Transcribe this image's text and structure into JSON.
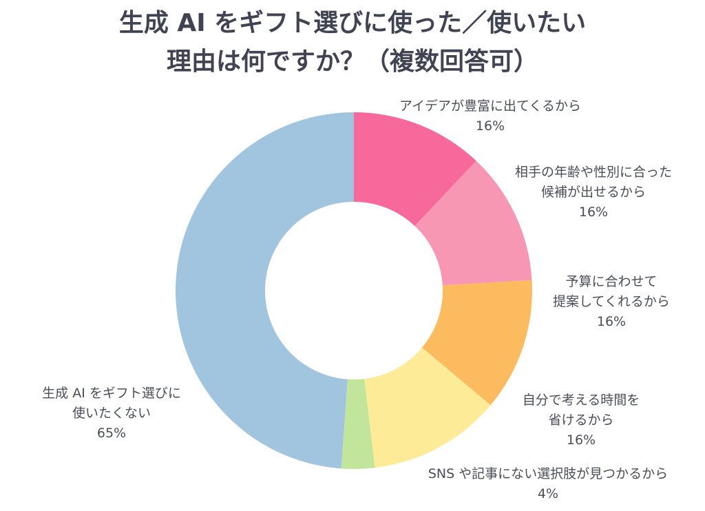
{
  "chart_data": {
    "type": "pie",
    "variant": "donut",
    "title_lines": [
      "生成 AI をギフト選びに使った／使いたい",
      "理由は何ですか？（複数回答可）"
    ],
    "slices": [
      {
        "label_lines": [
          "アイデアが豊富に出てくるから"
        ],
        "value": 16,
        "display": "16%",
        "color": "#f7699a"
      },
      {
        "label_lines": [
          "相手の年齢や性別に合った",
          "候補が出せるから"
        ],
        "value": 16,
        "display": "16%",
        "color": "#f797b4"
      },
      {
        "label_lines": [
          "予算に合わせて",
          "提案してくれるから"
        ],
        "value": 16,
        "display": "16%",
        "color": "#fbbb5e"
      },
      {
        "label_lines": [
          "自分で考える時間を",
          "省けるから"
        ],
        "value": 16,
        "display": "16%",
        "color": "#fdeb97"
      },
      {
        "label_lines": [
          "SNS や記事にない選択肢が見つかるから"
        ],
        "value": 4,
        "display": "4%",
        "color": "#c2e59c"
      },
      {
        "label_lines": [
          "生成 AI をギフト選びに",
          "使いたくない"
        ],
        "value": 65,
        "display": "65%",
        "color": "#a1c4df"
      }
    ]
  }
}
